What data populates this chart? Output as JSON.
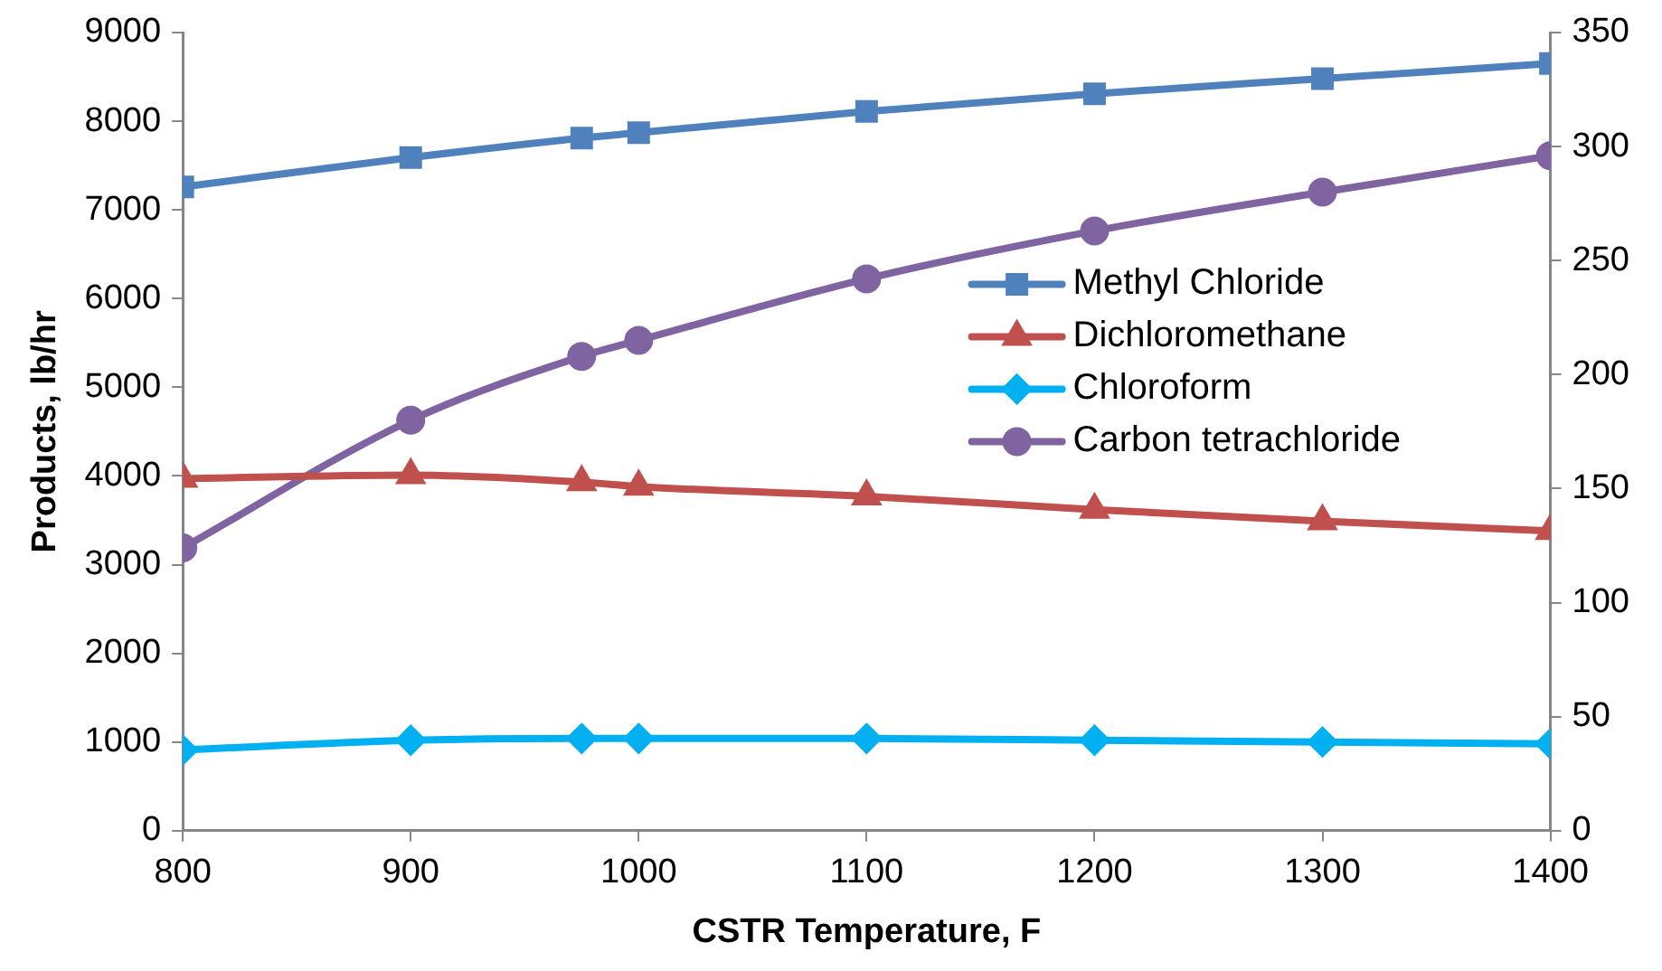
{
  "chart_data": {
    "type": "line",
    "xlabel": "CSTR Temperature, F",
    "ylabel": "Products, lb/hr",
    "x": [
      800,
      900,
      975,
      1000,
      1100,
      1200,
      1300,
      1400
    ],
    "series": [
      {
        "name": "Methyl Chloride",
        "color": "#4f81bd",
        "marker": "square",
        "values": [
          7260,
          7590,
          7810,
          7870,
          8110,
          8310,
          8480,
          8650
        ]
      },
      {
        "name": "Dichloromethane",
        "color": "#c0504d",
        "marker": "triangle",
        "values": [
          3970,
          4010,
          3930,
          3880,
          3770,
          3620,
          3490,
          3380
        ]
      },
      {
        "name": "Chloroform",
        "color": "#00b0f0",
        "marker": "diamond",
        "values": [
          910,
          1020,
          1040,
          1040,
          1040,
          1020,
          1000,
          980
        ]
      },
      {
        "name": "Carbon tetrachloride",
        "color": "#8064a2",
        "marker": "circle",
        "axis": "y2",
        "values": [
          124,
          180,
          208,
          215,
          242,
          263,
          280,
          296
        ]
      }
    ],
    "xlim": [
      800,
      1400
    ],
    "xticks": [
      800,
      900,
      1000,
      1100,
      1200,
      1300,
      1400
    ],
    "ylim": [
      0,
      9000
    ],
    "yticks": [
      0,
      1000,
      2000,
      3000,
      4000,
      5000,
      6000,
      7000,
      8000,
      9000
    ],
    "y2lim": [
      0,
      350
    ],
    "y2ticks": [
      0,
      50,
      100,
      150,
      200,
      250,
      300,
      350
    ],
    "grid": false,
    "legend": "right",
    "line_style": "solid"
  }
}
